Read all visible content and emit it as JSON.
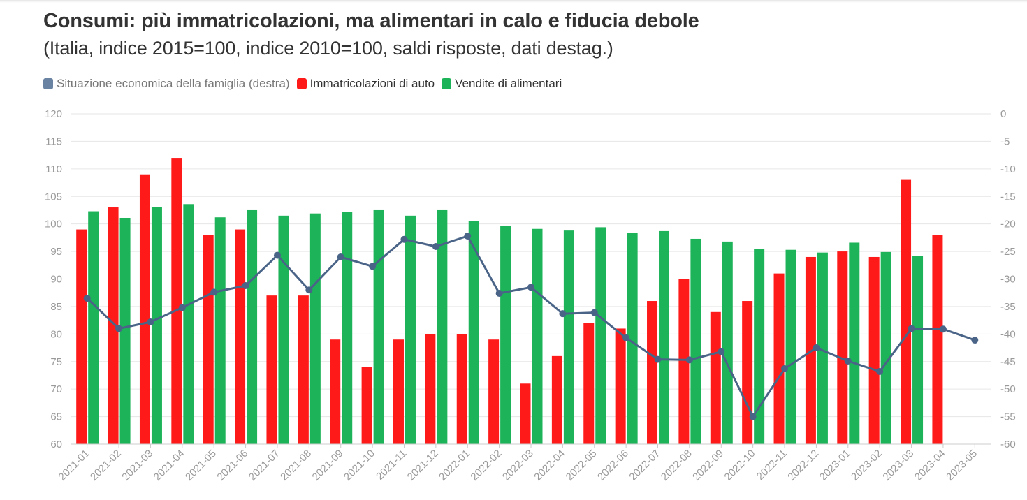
{
  "title": "Consumi: più immatricolazioni, ma alimentari in calo e fiducia debole",
  "subtitle": "(Italia, indice 2015=100, indice 2010=100, saldi risposte, dati destag.)",
  "legend": [
    {
      "label": "Situazione economica della famiglia (destra)",
      "color": "#6b83a3"
    },
    {
      "label": "Immatricolazioni di auto",
      "color": "#ff1a1a"
    },
    {
      "label": "Vendite di alimentari",
      "color": "#1db359"
    }
  ],
  "chart_data": {
    "type": "bar",
    "categories": [
      "2021-01",
      "2021-02",
      "2021-03",
      "2021-04",
      "2021-05",
      "2021-06",
      "2021-07",
      "2021-08",
      "2021-09",
      "2021-10",
      "2021-11",
      "2021-12",
      "2022-01",
      "2022-02",
      "2022-03",
      "2022-04",
      "2022-05",
      "2022-06",
      "2022-07",
      "2022-08",
      "2022-09",
      "2022-10",
      "2022-11",
      "2022-12",
      "2023-01",
      "2023-02",
      "2023-03",
      "2023-04",
      "2023-05"
    ],
    "series": [
      {
        "name": "Immatricolazioni di auto",
        "type": "bar",
        "axis": "left",
        "color": "#ff1a1a",
        "values": [
          99,
          103,
          109,
          112,
          98,
          99,
          87,
          87,
          79,
          74,
          79,
          80,
          80,
          79,
          71,
          76,
          82,
          81,
          86,
          90,
          84,
          86,
          91,
          94,
          95,
          94,
          108,
          98,
          null
        ]
      },
      {
        "name": "Vendite di alimentari",
        "type": "bar",
        "axis": "left",
        "color": "#1db359",
        "values": [
          102.3,
          101.1,
          103.1,
          103.6,
          101.2,
          102.5,
          101.5,
          101.9,
          102.2,
          102.5,
          101.5,
          102.5,
          100.5,
          99.7,
          99.1,
          98.8,
          99.4,
          98.4,
          98.7,
          97.3,
          96.8,
          95.4,
          95.3,
          94.8,
          96.6,
          94.9,
          94.2,
          null,
          null
        ]
      },
      {
        "name": "Situazione economica della famiglia (destra)",
        "type": "line",
        "axis": "right",
        "color": "#4a6488",
        "values": [
          -33.5,
          -39,
          -37.8,
          -35.2,
          -32.4,
          -31.2,
          -25.7,
          -32,
          -26,
          -27.7,
          -22.8,
          -24.1,
          -22.2,
          -32.6,
          -31.5,
          -36.3,
          -36.1,
          -40.7,
          -44.6,
          -44.7,
          -43.2,
          -55,
          -46.3,
          -42.5,
          -44.9,
          -46.8,
          -39,
          -39.1,
          -41.1
        ]
      }
    ],
    "y_left": {
      "min": 60,
      "max": 120,
      "step": 5
    },
    "y_right": {
      "min": -60,
      "max": 0,
      "step": 5
    },
    "grid": true,
    "legend_position": "top-left"
  }
}
